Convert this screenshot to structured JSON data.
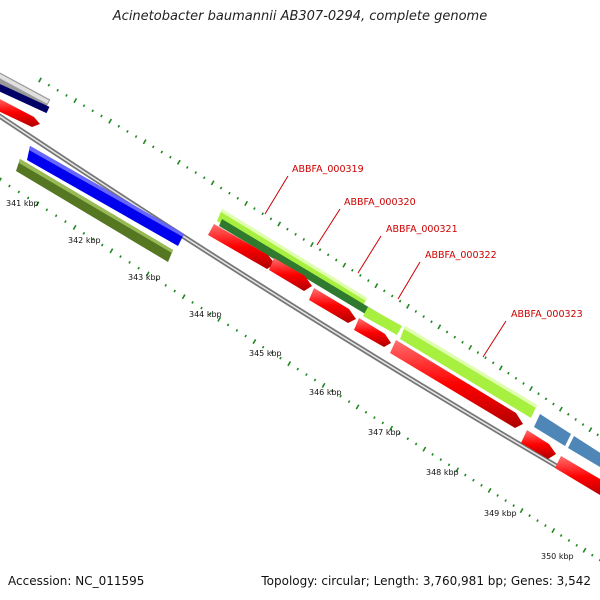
{
  "title": "Acinetobacter baumannii AB307-0294, complete genome",
  "footer": {
    "accession": "Accession: NC_011595",
    "summary": "Topology: circular; Length: 3,760,981 bp; Genes: 3,542"
  },
  "ticks": [
    "341 kbp",
    "342 kbp",
    "343 kbp",
    "344 kbp",
    "345 kbp",
    "346 kbp",
    "347 kbp",
    "348 kbp",
    "349 kbp",
    "350 kbp"
  ],
  "gene_labels": [
    "ABBFA_000319",
    "ABBFA_000320",
    "ABBFA_000321",
    "ABBFA_000322",
    "ABBFA_000323"
  ],
  "colors": {
    "cds_red": "#ff0000",
    "blue": "#0000ee",
    "olive": "#557722",
    "lime": "#a8f040",
    "dark_green": "#2f7a2f",
    "steel_blue": "#4f86b8",
    "navy": "#000066",
    "grey": "#bbbbbb",
    "backbone": "#888888",
    "tick_green": "#228822"
  }
}
